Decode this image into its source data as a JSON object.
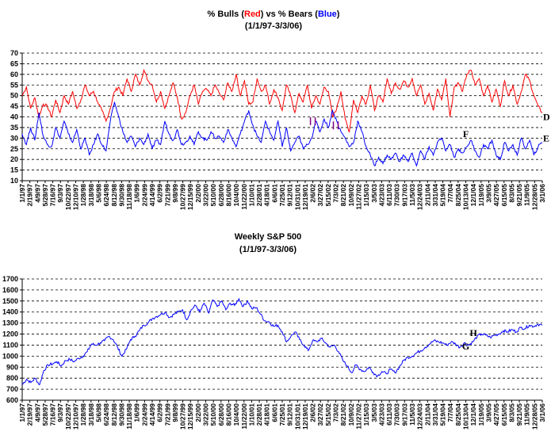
{
  "chart_data": [
    {
      "type": "line",
      "title_parts": [
        {
          "text": "% Bulls (",
          "color": "#000000"
        },
        {
          "text": "Red",
          "color": "#ff0000"
        },
        {
          "text": ") vs % Bears (",
          "color": "#000000"
        },
        {
          "text": "Blue",
          "color": "#0000ff"
        },
        {
          "text": ")",
          "color": "#000000"
        }
      ],
      "subtitle": "(1/1/97-3/3/06)",
      "ylim": [
        10,
        70
      ],
      "yticks": [
        10,
        15,
        20,
        25,
        30,
        35,
        40,
        45,
        50,
        55,
        60,
        65,
        70
      ],
      "grid": "horizontal-dashed",
      "xticks": [
        "1/1/97",
        "2/19/97",
        "4/9/97",
        "5/28/97",
        "7/16/97",
        "9/3/97",
        "10/22/97",
        "12/10/97",
        "1/28/98",
        "3/18/98",
        "5/6/98",
        "6/24/98",
        "8/12/98",
        "9/30/98",
        "11/18/98",
        "1/6/99",
        "2/24/99",
        "4/14/99",
        "6/2/99",
        "7/21/99",
        "9/8/99",
        "10/27/99",
        "12/15/99",
        "2/2/00",
        "3/22/00",
        "5/10/00",
        "6/28/00",
        "8/16/00",
        "10/4/00",
        "11/22/00",
        "1/10/01",
        "2/28/01",
        "4/18/01",
        "6/6/01",
        "7/25/01",
        "9/12/01",
        "10/31/01",
        "12/19/01",
        "2/6/02",
        "3/27/02",
        "5/15/02",
        "7/3/02",
        "8/21/02",
        "10/9/02",
        "11/27/02",
        "1/15/03",
        "3/5/03",
        "4/23/03",
        "6/11/03",
        "7/30/03",
        "9/17/03",
        "11/5/03",
        "12/24/03",
        "2/11/04",
        "3/31/04",
        "5/19/04",
        "7/7/04",
        "8/25/04",
        "10/13/04",
        "12/1/04",
        "1/19/05",
        "3/9/05",
        "4/27/05",
        "6/15/05",
        "8/3/05",
        "9/21/05",
        "11/9/05",
        "12/28/05",
        "3/1/06"
      ],
      "series": [
        {
          "name": "% Bulls",
          "color": "#ff0000",
          "anchors": [
            50,
            54,
            44,
            49,
            40,
            46,
            45,
            40,
            48,
            42,
            50,
            46,
            52,
            44,
            48,
            55,
            50,
            52,
            47,
            43,
            38,
            44,
            52,
            54,
            50,
            58,
            52,
            60,
            55,
            62,
            57,
            55,
            47,
            52,
            44,
            50,
            56,
            49,
            39,
            42,
            50,
            55,
            46,
            52,
            53,
            50,
            55,
            51,
            48,
            56,
            52,
            60,
            50,
            57,
            46,
            47,
            58,
            52,
            55,
            46,
            53,
            49,
            43,
            55,
            50,
            42,
            51,
            47,
            55,
            44,
            50,
            46,
            54,
            52,
            40,
            44,
            52,
            39,
            33,
            48,
            42,
            50,
            46,
            55,
            43,
            50,
            47,
            58,
            51,
            56,
            53,
            57,
            54,
            58,
            50,
            55,
            46,
            51,
            43,
            53,
            48,
            58,
            40,
            54,
            56,
            52,
            60,
            62,
            55,
            58,
            50,
            55,
            47,
            53,
            45,
            57,
            50,
            55,
            46,
            52,
            60,
            57,
            50,
            45,
            42
          ]
        },
        {
          "name": "% Bears",
          "color": "#0000ff",
          "anchors": [
            32,
            27,
            35,
            29,
            42,
            31,
            27,
            26,
            35,
            30,
            38,
            32,
            28,
            34,
            25,
            30,
            22,
            27,
            32,
            27,
            24,
            38,
            47,
            40,
            33,
            28,
            31,
            26,
            30,
            27,
            32,
            25,
            29,
            27,
            38,
            32,
            29,
            34,
            27,
            28,
            31,
            27,
            33,
            30,
            29,
            33,
            30,
            31,
            28,
            34,
            30,
            26,
            32,
            38,
            43,
            36,
            31,
            28,
            38,
            33,
            29,
            38,
            26,
            35,
            24,
            28,
            31,
            25,
            27,
            30,
            38,
            33,
            39,
            35,
            43,
            38,
            33,
            30,
            26,
            28,
            38,
            33,
            26,
            22,
            17,
            21,
            18,
            22,
            20,
            23,
            19,
            22,
            19,
            23,
            17,
            24,
            20,
            26,
            22,
            28,
            30,
            24,
            27,
            21,
            25,
            23,
            26,
            29,
            24,
            21,
            27,
            25,
            29,
            22,
            20,
            28,
            24,
            27,
            22,
            30,
            25,
            29,
            22,
            26,
            28
          ]
        }
      ],
      "annotations": [
        {
          "text": "D",
          "x": "3/3/06",
          "y": 40
        },
        {
          "text": "E",
          "x": "3/3/06",
          "y": 30
        },
        {
          "text": "F",
          "x": "10/13/04",
          "y": 32
        }
      ],
      "purple_marks": [
        {
          "x": "2/6/02",
          "y": 38
        },
        {
          "x": "7/3/02",
          "y": 36
        }
      ]
    },
    {
      "type": "line",
      "title": "Weekly S&P 500",
      "subtitle": "(1/1/97-3/3/06)",
      "ylim": [
        600,
        1700
      ],
      "yticks": [
        600,
        700,
        800,
        900,
        1000,
        1100,
        1200,
        1300,
        1400,
        1500,
        1600,
        1700
      ],
      "grid": "horizontal-dashed",
      "xticks": [
        "1/1/97",
        "2/19/97",
        "4/9/97",
        "5/28/97",
        "7/16/97",
        "9/3/97",
        "10/22/97",
        "12/10/97",
        "1/28/98",
        "3/18/98",
        "5/6/98",
        "6/24/98",
        "8/12/98",
        "9/30/98",
        "11/18/98",
        "1/6/99",
        "2/24/99",
        "4/14/99",
        "6/2/99",
        "7/21/99",
        "9/8/99",
        "10/27/99",
        "12/15/99",
        "2/2/00",
        "3/22/00",
        "5/10/00",
        "6/28/00",
        "8/16/00",
        "10/4/00",
        "11/22/00",
        "1/10/01",
        "2/28/01",
        "4/18/01",
        "6/6/01",
        "7/25/01",
        "9/12/01",
        "10/31/01",
        "12/19/01",
        "2/6/02",
        "3/27/02",
        "5/15/02",
        "7/3/02",
        "8/21/02",
        "10/9/02",
        "11/27/02",
        "1/15/03",
        "3/5/03",
        "4/23/03",
        "6/11/03",
        "7/30/03",
        "9/17/03",
        "11/5/03",
        "12/24/03",
        "2/11/04",
        "3/31/04",
        "5/19/04",
        "7/7/04",
        "8/25/04",
        "10/13/04",
        "12/1/04",
        "1/19/05",
        "3/9/05",
        "4/27/05",
        "6/15/05",
        "8/3/05",
        "9/21/05",
        "11/9/05",
        "12/28/05",
        "3/1/06"
      ],
      "series": [
        {
          "name": "S&P 500",
          "color": "#0000ff",
          "anchors": [
            740,
            790,
            760,
            800,
            740,
            870,
            920,
            930,
            950,
            910,
            960,
            970,
            950,
            980,
            1000,
            1040,
            1110,
            1100,
            1120,
            1140,
            1180,
            1150,
            1080,
            1000,
            1060,
            1150,
            1180,
            1230,
            1280,
            1300,
            1340,
            1360,
            1380,
            1400,
            1350,
            1380,
            1400,
            1420,
            1330,
            1420,
            1460,
            1400,
            1480,
            1390,
            1510,
            1450,
            1500,
            1420,
            1480,
            1460,
            1520,
            1450,
            1500,
            1430,
            1440,
            1380,
            1320,
            1310,
            1270,
            1280,
            1220,
            1130,
            1180,
            1220,
            1150,
            1100,
            1050,
            1140,
            1130,
            1160,
            1120,
            1080,
            1100,
            1040,
            960,
            910,
            850,
            920,
            880,
            860,
            900,
            850,
            820,
            860,
            840,
            880,
            850,
            900,
            960,
            990,
            1000,
            1030,
            1050,
            1080,
            1110,
            1140,
            1130,
            1120,
            1100,
            1130,
            1110,
            1080,
            1120,
            1100,
            1130,
            1180,
            1200,
            1190,
            1170,
            1190,
            1200,
            1230,
            1220,
            1240,
            1220,
            1260,
            1250,
            1280,
            1270,
            1290,
            1280
          ]
        }
      ],
      "annotations": [
        {
          "text": "H",
          "x": "12/1/04",
          "y": 1210
        },
        {
          "text": "G",
          "x": "10/13/04",
          "y": 1090
        }
      ]
    }
  ]
}
